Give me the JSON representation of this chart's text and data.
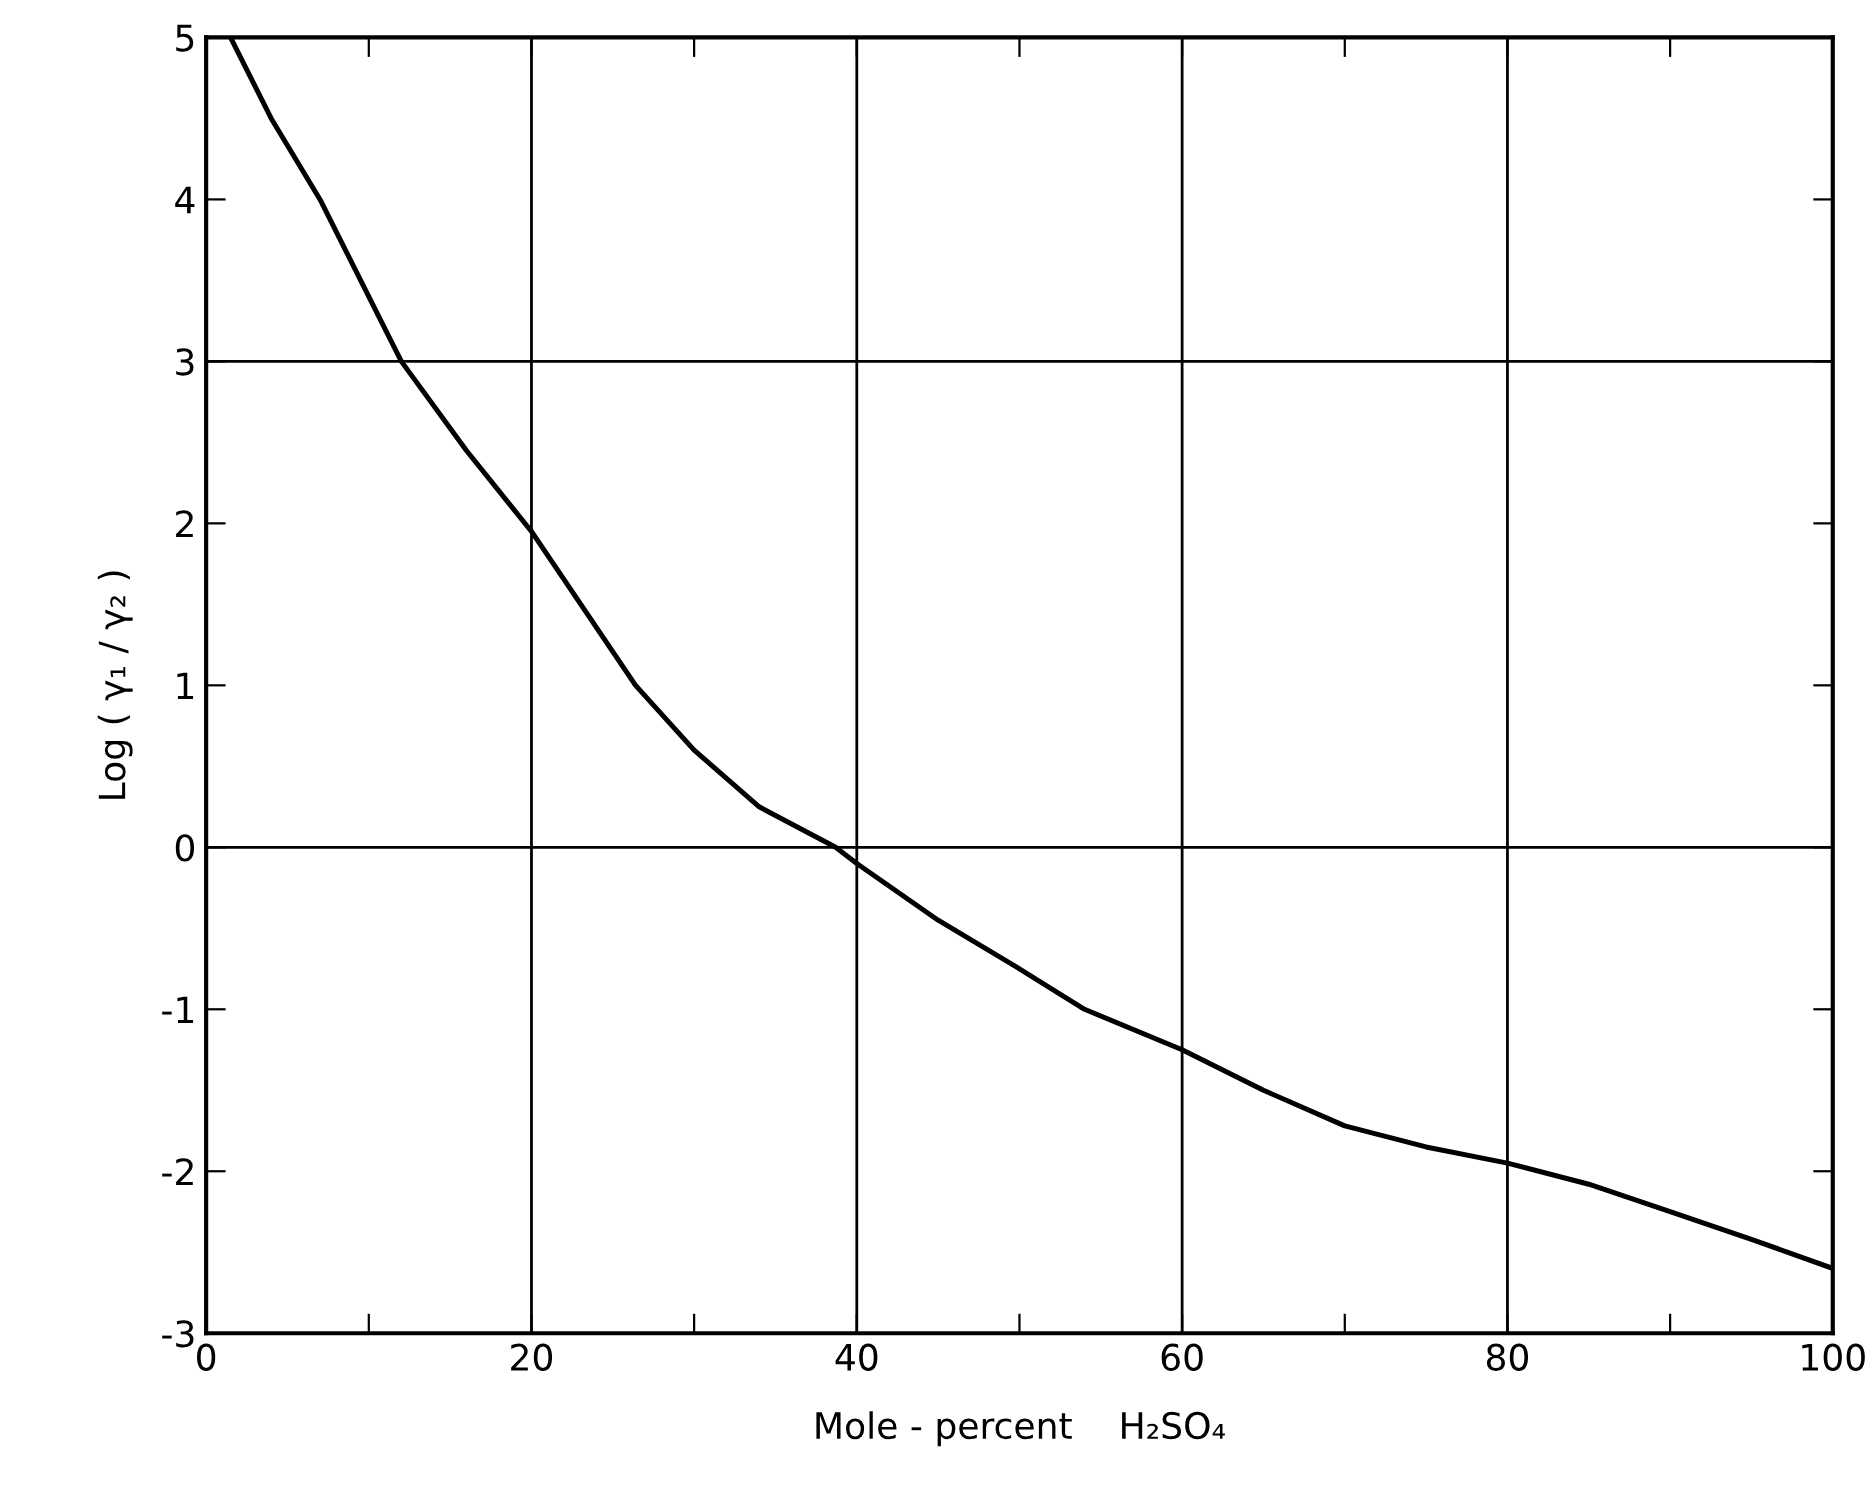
{
  "chart_data": {
    "type": "line",
    "xlabel": "Mole - percent    H₂SO₄",
    "ylabel": "Log ( γ₁ / γ₂ )",
    "x": [
      1.5,
      4,
      7,
      10,
      12,
      16,
      20,
      26.4,
      30,
      34,
      38.7,
      40,
      45,
      50,
      54,
      60,
      65,
      70,
      75,
      80,
      85,
      90,
      95,
      100
    ],
    "series": [
      {
        "color": "#000000",
        "values": [
          5.0,
          4.5,
          4.0,
          3.4,
          3.0,
          2.45,
          1.95,
          1.0,
          0.6,
          0.25,
          0.0,
          -0.1,
          -0.45,
          -0.75,
          -1.0,
          -1.25,
          -1.5,
          -1.72,
          -1.85,
          -1.95,
          -2.08,
          -2.25,
          -2.42,
          -2.6
        ]
      }
    ],
    "xlim": [
      0,
      100
    ],
    "ylim": [
      -3,
      5
    ],
    "xticks": [
      0,
      {
        "value": 10,
        "label": null
      },
      20,
      {
        "value": 30,
        "label": null
      },
      40,
      {
        "value": 50,
        "label": null
      },
      60,
      {
        "value": 70,
        "label": null
      },
      80,
      {
        "value": 90,
        "label": null
      },
      100
    ],
    "yticks": [
      -3,
      -2,
      -1,
      0,
      1,
      2,
      3,
      4,
      5
    ],
    "grid": "x",
    "marker": "none",
    "line_style": "solid",
    "legend": false,
    "ref_lines": [
      {
        "axis": "y",
        "value": 3,
        "color": "#000000"
      },
      {
        "axis": "y",
        "value": 0,
        "color": "#000000"
      }
    ]
  }
}
